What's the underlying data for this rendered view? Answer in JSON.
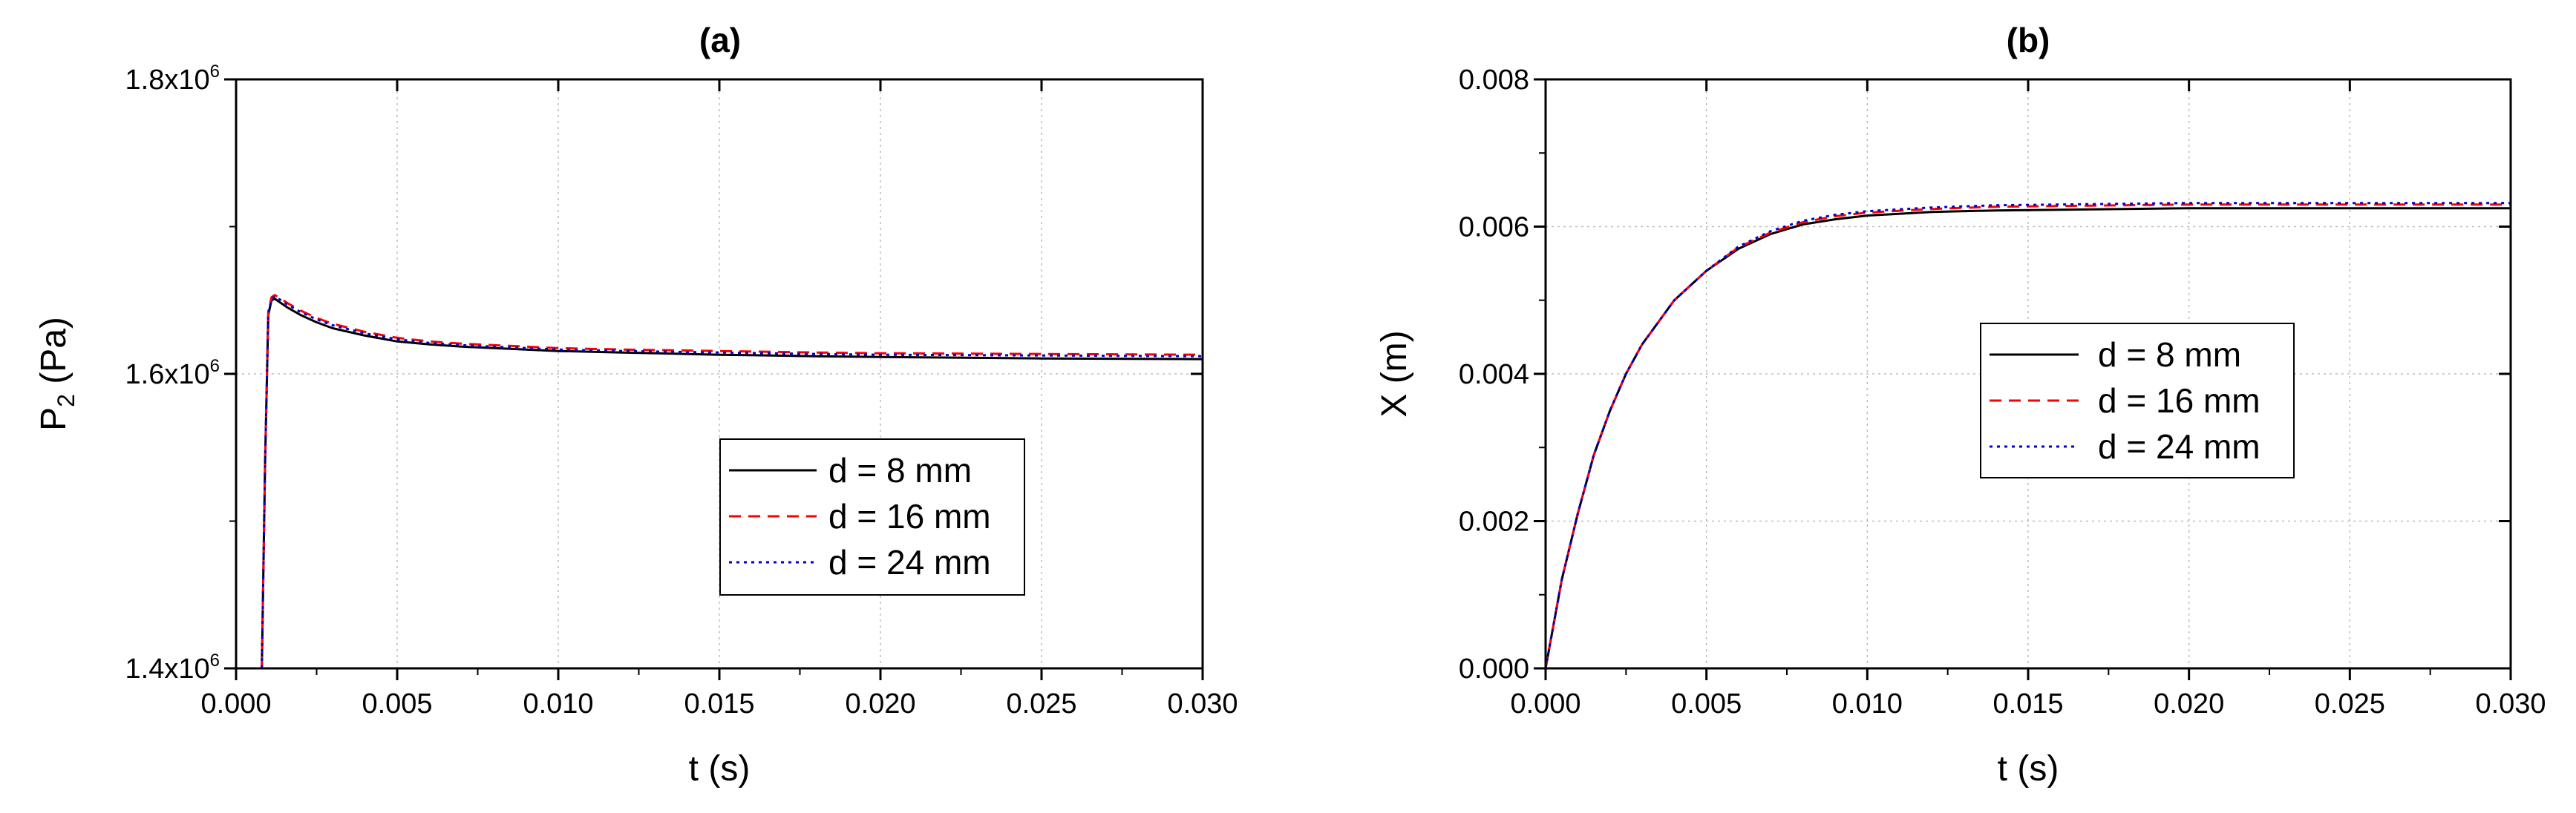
{
  "chart_data": [
    {
      "type": "line",
      "title": "(a)",
      "xlabel": "t (s)",
      "ylabel": "P2 (Pa)",
      "ylabel_main": "P",
      "ylabel_sub": "2",
      "ylabel_unit": " (Pa)",
      "xlim": [
        0.0,
        0.03
      ],
      "ylim": [
        1400000,
        1800000
      ],
      "xticks": [
        0.0,
        0.005,
        0.01,
        0.015,
        0.02,
        0.025,
        0.03
      ],
      "xtick_labels": [
        "0.000",
        "0.005",
        "0.010",
        "0.015",
        "0.020",
        "0.025",
        "0.030"
      ],
      "yticks": [
        1400000,
        1600000,
        1800000
      ],
      "ytick_labels": [
        {
          "mantissa": "1.4x10",
          "exponent": "6"
        },
        {
          "mantissa": "1.6x10",
          "exponent": "6"
        },
        {
          "mantissa": "1.8x10",
          "exponent": "6"
        }
      ],
      "grid": true,
      "legend_position": "lower-right",
      "series": [
        {
          "name": "d = 8 mm",
          "color": "#000000",
          "style": "solid",
          "x": [
            0.0008,
            0.00085,
            0.0009,
            0.001,
            0.0011,
            0.0012,
            0.0014,
            0.0016,
            0.002,
            0.0025,
            0.003,
            0.004,
            0.005,
            0.006,
            0.007,
            0.008,
            0.01,
            0.012,
            0.015,
            0.018,
            0.02,
            0.025,
            0.03
          ],
          "y": [
            1400000,
            1470000,
            1540000,
            1640000,
            1650000,
            1651000,
            1648000,
            1645000,
            1640000,
            1635000,
            1631000,
            1626000,
            1622000,
            1620000,
            1618500,
            1617500,
            1615500,
            1614500,
            1613000,
            1612000,
            1611500,
            1610500,
            1610000
          ]
        },
        {
          "name": "d = 16 mm",
          "color": "#ff0000",
          "style": "dashed",
          "x": [
            0.0008,
            0.00085,
            0.0009,
            0.001,
            0.0011,
            0.0012,
            0.0014,
            0.0016,
            0.002,
            0.0025,
            0.003,
            0.004,
            0.005,
            0.006,
            0.007,
            0.008,
            0.01,
            0.012,
            0.015,
            0.018,
            0.02,
            0.025,
            0.03
          ],
          "y": [
            1400000,
            1470000,
            1540000,
            1642000,
            1652000,
            1653500,
            1651000,
            1648000,
            1643000,
            1638000,
            1634000,
            1628500,
            1624500,
            1622000,
            1620500,
            1619500,
            1617500,
            1616500,
            1615500,
            1614500,
            1614000,
            1613500,
            1613000
          ]
        },
        {
          "name": "d = 24 mm",
          "color": "#0000cc",
          "style": "dotted",
          "x": [
            0.0008,
            0.00085,
            0.0009,
            0.001,
            0.0011,
            0.0012,
            0.0014,
            0.0016,
            0.002,
            0.0025,
            0.003,
            0.004,
            0.005,
            0.006,
            0.007,
            0.008,
            0.01,
            0.012,
            0.015,
            0.018,
            0.02,
            0.025,
            0.03
          ],
          "y": [
            1400000,
            1470000,
            1540000,
            1641000,
            1651000,
            1652500,
            1650000,
            1647000,
            1642000,
            1637000,
            1633000,
            1627500,
            1623500,
            1621000,
            1619500,
            1618500,
            1616500,
            1615500,
            1614500,
            1613500,
            1613000,
            1612500,
            1612000
          ]
        }
      ]
    },
    {
      "type": "line",
      "title": "(b)",
      "xlabel": "t (s)",
      "ylabel": "X (m)",
      "xlim": [
        0.0,
        0.03
      ],
      "ylim": [
        0.0,
        0.008
      ],
      "xticks": [
        0.0,
        0.005,
        0.01,
        0.015,
        0.02,
        0.025,
        0.03
      ],
      "xtick_labels": [
        "0.000",
        "0.005",
        "0.010",
        "0.015",
        "0.020",
        "0.025",
        "0.030"
      ],
      "yticks": [
        0.0,
        0.002,
        0.004,
        0.006,
        0.008
      ],
      "ytick_labels": [
        "0.000",
        "0.002",
        "0.004",
        "0.006",
        "0.008"
      ],
      "grid": true,
      "legend_position": "center-right",
      "series": [
        {
          "name": "d = 8 mm",
          "color": "#000000",
          "style": "solid",
          "x": [
            0.0,
            0.0005,
            0.001,
            0.0015,
            0.002,
            0.0025,
            0.003,
            0.0035,
            0.004,
            0.005,
            0.006,
            0.007,
            0.008,
            0.009,
            0.01,
            0.012,
            0.014,
            0.016,
            0.018,
            0.02,
            0.025,
            0.03
          ],
          "y": [
            0.0,
            0.0012,
            0.0021,
            0.0029,
            0.0035,
            0.004,
            0.0044,
            0.0047,
            0.005,
            0.0054,
            0.0057,
            0.0059,
            0.00603,
            0.0061,
            0.00615,
            0.0062,
            0.00622,
            0.00623,
            0.00624,
            0.00625,
            0.00625,
            0.00625
          ]
        },
        {
          "name": "d = 16 mm",
          "color": "#ff0000",
          "style": "dashed",
          "x": [
            0.0,
            0.0005,
            0.001,
            0.0015,
            0.002,
            0.0025,
            0.003,
            0.0035,
            0.004,
            0.005,
            0.006,
            0.007,
            0.008,
            0.009,
            0.01,
            0.012,
            0.014,
            0.016,
            0.018,
            0.02,
            0.025,
            0.03
          ],
          "y": [
            0.0,
            0.0012,
            0.0021,
            0.0029,
            0.0035,
            0.004,
            0.0044,
            0.0047,
            0.005,
            0.0054,
            0.00572,
            0.00592,
            0.00606,
            0.00614,
            0.00619,
            0.00624,
            0.00627,
            0.00628,
            0.00629,
            0.0063,
            0.0063,
            0.0063
          ]
        },
        {
          "name": "d = 24 mm",
          "color": "#0000cc",
          "style": "dotted",
          "x": [
            0.0,
            0.0005,
            0.001,
            0.0015,
            0.002,
            0.0025,
            0.003,
            0.0035,
            0.004,
            0.005,
            0.006,
            0.007,
            0.008,
            0.009,
            0.01,
            0.012,
            0.014,
            0.016,
            0.018,
            0.02,
            0.025,
            0.03
          ],
          "y": [
            0.0,
            0.0012,
            0.0021,
            0.0029,
            0.0035,
            0.004,
            0.0044,
            0.0047,
            0.005,
            0.0054,
            0.00573,
            0.00594,
            0.00608,
            0.00616,
            0.00621,
            0.00626,
            0.00629,
            0.0063,
            0.00631,
            0.00632,
            0.00632,
            0.00632
          ]
        }
      ]
    }
  ]
}
